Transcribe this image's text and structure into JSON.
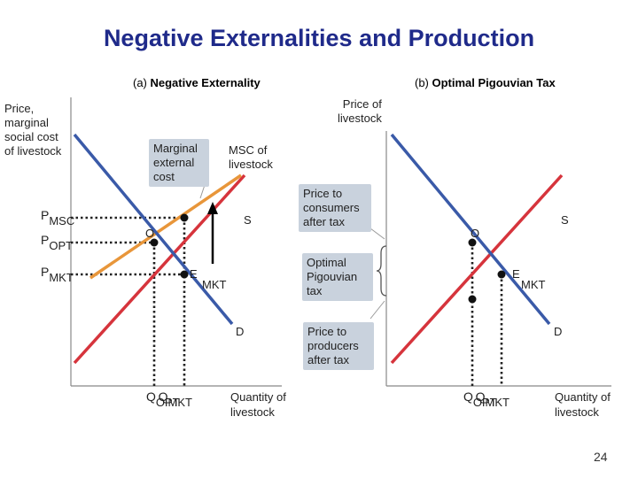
{
  "title": "Negative Externalities and Production",
  "panel_a": {
    "subtitle_prefix": "(a) ",
    "subtitle_bold": "Negative Externality",
    "y_axis_label": [
      "Price,",
      "marginal",
      "social cost",
      "of livestock"
    ],
    "callout_marginal": [
      "Marginal",
      "external",
      "cost"
    ],
    "msc_label": [
      "MSC of",
      "livestock"
    ],
    "s_label": "S",
    "o_label": "O",
    "e_label": "E",
    "mkt_label": "MKT",
    "d_label": "D",
    "p_msc": {
      "main": "P",
      "sub": "MSC"
    },
    "p_opt": {
      "main": "P",
      "sub": "OPT"
    },
    "p_mkt": {
      "main": "P",
      "sub": "MKT"
    },
    "q_label": {
      "q1": "Q",
      "q2": "Q",
      "opt": "OPT",
      "mkt": "MKT"
    },
    "x_axis_label": [
      "Quantity of",
      "livestock"
    ]
  },
  "panel_b": {
    "subtitle_prefix": "(b) ",
    "subtitle_bold": "Optimal Pigouvian Tax",
    "y_axis_label": [
      "Price of",
      "livestock"
    ],
    "callout_consumers": [
      "Price to",
      "consumers",
      "after tax"
    ],
    "callout_tax": [
      "Optimal",
      "Pigouvian",
      "tax"
    ],
    "callout_producers": [
      "Price to",
      "producers",
      "after tax"
    ],
    "s_label": "S",
    "o_label": "O",
    "e_label": "E",
    "mkt_label": "MKT",
    "d_label": "D",
    "q_label": {
      "q1": "Q",
      "q2": "Q",
      "opt": "OPT",
      "mkt": "MKT"
    },
    "x_axis_label": [
      "Quantity of",
      "livestock"
    ]
  },
  "page_number": "24",
  "colors": {
    "title": "#1f2a8a",
    "demand": "#3a5aa8",
    "supply": "#d6343c",
    "msc": "#e8963a",
    "callout_bg": "#c9d2dd",
    "axis": "#888888"
  }
}
